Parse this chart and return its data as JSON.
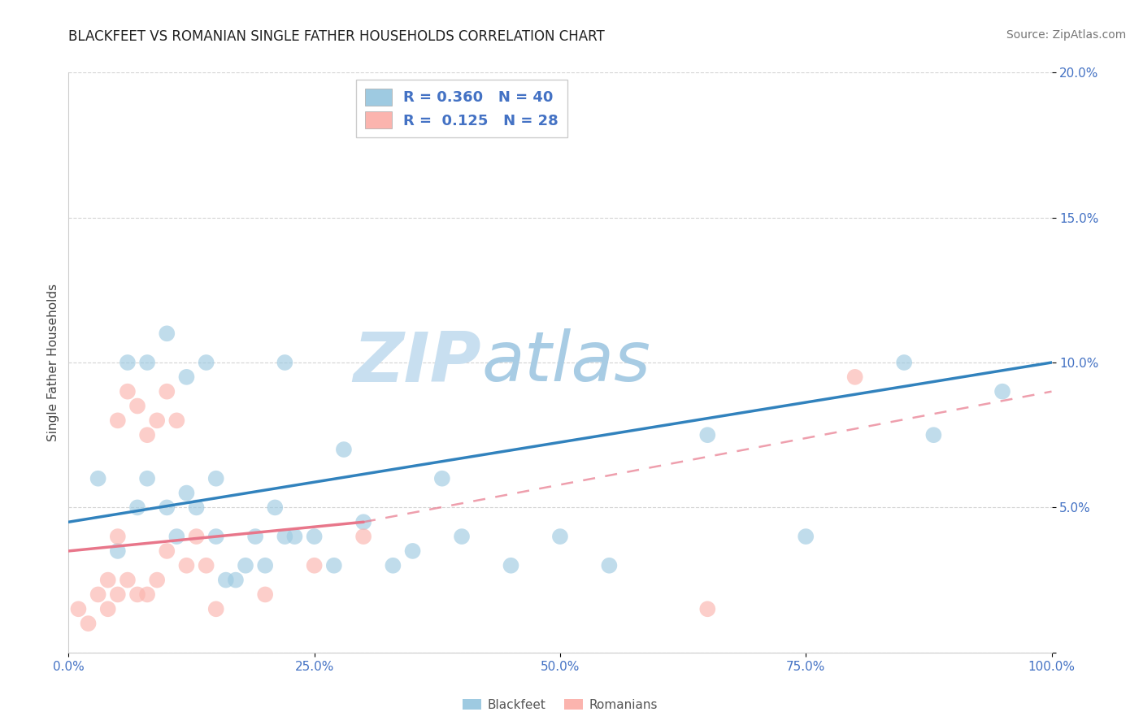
{
  "title": "BLACKFEET VS ROMANIAN SINGLE FATHER HOUSEHOLDS CORRELATION CHART",
  "source": "Source: ZipAtlas.com",
  "ylabel": "Single Father Households",
  "xlim": [
    0,
    100
  ],
  "ylim": [
    0,
    20
  ],
  "xticks": [
    0,
    25,
    50,
    75,
    100
  ],
  "xtick_labels": [
    "0.0%",
    "25.0%",
    "50.0%",
    "75.0%",
    "100.0%"
  ],
  "yticks": [
    0,
    5,
    10,
    15,
    20
  ],
  "ytick_labels": [
    "",
    "5.0%",
    "10.0%",
    "15.0%",
    "20.0%"
  ],
  "legend1_R": "0.360",
  "legend1_N": "40",
  "legend2_R": "0.125",
  "legend2_N": "28",
  "legend_label1": "Blackfeet",
  "legend_label2": "Romanians",
  "blue_color": "#9ecae1",
  "pink_color": "#fbb4ae",
  "blue_line_color": "#3182bd",
  "pink_line_color": "#e8768a",
  "watermark_zip": "ZIP",
  "watermark_atlas": "atlas",
  "watermark_zip_color": "#c8dff0",
  "watermark_atlas_color": "#a8cce4",
  "blue_points_x": [
    3,
    5,
    6,
    7,
    8,
    8,
    10,
    10,
    11,
    12,
    12,
    13,
    14,
    15,
    15,
    16,
    17,
    18,
    19,
    20,
    21,
    22,
    22,
    23,
    25,
    27,
    28,
    30,
    33,
    35,
    38,
    40,
    45,
    50,
    55,
    65,
    75,
    85,
    88,
    95
  ],
  "blue_points_y": [
    6,
    3.5,
    10,
    5,
    10,
    6,
    5,
    11,
    4,
    5.5,
    9.5,
    5,
    10,
    4,
    6,
    2.5,
    2.5,
    3,
    4,
    3,
    5,
    10,
    4,
    4,
    4,
    3,
    7,
    4.5,
    3,
    3.5,
    6,
    4,
    3,
    4,
    3,
    7.5,
    4,
    10,
    7.5,
    9
  ],
  "pink_points_x": [
    1,
    2,
    3,
    4,
    4,
    5,
    5,
    5,
    6,
    6,
    7,
    7,
    8,
    8,
    9,
    9,
    10,
    10,
    11,
    12,
    13,
    14,
    15,
    20,
    25,
    30,
    65,
    80
  ],
  "pink_points_y": [
    1.5,
    1,
    2,
    1.5,
    2.5,
    2,
    4,
    8,
    2.5,
    9,
    2,
    8.5,
    2,
    7.5,
    2.5,
    8,
    3.5,
    9,
    8,
    3,
    4,
    3,
    1.5,
    2,
    3,
    4,
    1.5,
    9.5
  ],
  "blue_line_x0": 0,
  "blue_line_x1": 100,
  "blue_line_y0": 4.5,
  "blue_line_y1": 10.0,
  "pink_solid_x0": 0,
  "pink_solid_x1": 30,
  "pink_solid_y0": 3.5,
  "pink_solid_y1": 4.5,
  "pink_dash_x0": 30,
  "pink_dash_x1": 100,
  "pink_dash_y0": 4.5,
  "pink_dash_y1": 9.0,
  "grid_color": "#d0d0d0",
  "bg_color": "#ffffff",
  "title_fontsize": 12,
  "axis_label_fontsize": 11,
  "tick_fontsize": 11,
  "source_fontsize": 10
}
